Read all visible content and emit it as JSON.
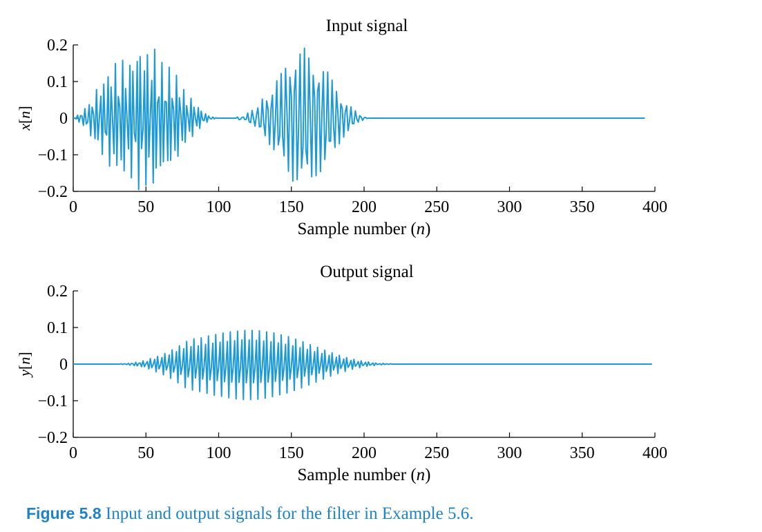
{
  "colors": {
    "line": "#1d9ad6",
    "axis": "#000000",
    "caption": "#1e83c5"
  },
  "caption": {
    "label": "Figure 5.8",
    "text": "Input and output signals for the filter in Example 5.6."
  },
  "chart_data": [
    {
      "type": "line",
      "title": "Input signal",
      "xlabel": "Sample number (n)",
      "ylabel": "x[n]",
      "xlim": [
        0,
        400
      ],
      "ylim": [
        -0.2,
        0.2
      ],
      "xticks": [
        0,
        50,
        100,
        150,
        200,
        250,
        300,
        350,
        400
      ],
      "yticks": [
        0.2,
        0.1,
        0,
        -0.1,
        -0.2
      ],
      "ytick_labels": [
        "0.2",
        "0.1",
        "0",
        "−0.1",
        "−0.2"
      ],
      "grid": false,
      "series": [
        {
          "values": [
            0.0,
            0.0,
            -0.002,
            0.008,
            -0.011,
            0.007,
            0.006,
            -0.02,
            0.026,
            -0.016,
            -0.01,
            0.037,
            -0.048,
            0.03,
            0.011,
            -0.056,
            0.078,
            -0.059,
            0.003,
            0.06,
            -0.099,
            0.093,
            -0.038,
            -0.046,
            0.113,
            -0.131,
            0.085,
            0.0,
            -0.097,
            0.149,
            -0.129,
            0.059,
            0.031,
            -0.114,
            0.158,
            -0.144,
            0.081,
            0.0,
            -0.084,
            0.144,
            -0.163,
            0.128,
            -0.042,
            -0.064,
            0.155,
            -0.195,
            0.168,
            -0.083,
            -0.029,
            0.129,
            -0.183,
            0.173,
            -0.106,
            0.004,
            0.103,
            -0.177,
            0.188,
            -0.136,
            0.042,
            0.058,
            -0.13,
            0.152,
            -0.119,
            0.046,
            0.044,
            -0.116,
            0.139,
            -0.115,
            0.054,
            0.023,
            -0.088,
            0.117,
            -0.104,
            0.056,
            0.011,
            -0.061,
            0.078,
            -0.066,
            0.034,
            0.004,
            -0.036,
            0.054,
            -0.05,
            0.03,
            0.001,
            -0.021,
            0.029,
            -0.028,
            0.019,
            -0.005,
            -0.007,
            0.012,
            -0.011,
            0.006,
            -0.001,
            -0.002,
            0.003,
            -0.002,
            0.001,
            0.0,
            0.0,
            0.0,
            0.0,
            0.0,
            0.0,
            0.0,
            0.0,
            0.0,
            0.0,
            0.0,
            0.0,
            0.0,
            0.0,
            0.003,
            -0.004,
            -0.003,
            0.002,
            0.003,
            -0.004,
            -0.003,
            0.014,
            -0.01,
            -0.012,
            0.021,
            -0.001,
            -0.022,
            0.008,
            0.028,
            -0.024,
            -0.023,
            0.052,
            -0.012,
            -0.048,
            0.047,
            0.023,
            -0.072,
            0.025,
            0.063,
            -0.086,
            -0.008,
            0.102,
            -0.073,
            -0.049,
            0.122,
            -0.05,
            -0.103,
            0.136,
            0.015,
            -0.145,
            0.112,
            0.06,
            -0.172,
            0.073,
            0.131,
            -0.168,
            -0.02,
            0.175,
            -0.136,
            -0.079,
            0.191,
            -0.086,
            -0.125,
            0.164,
            0.005,
            -0.16,
            0.117,
            0.055,
            -0.157,
            0.073,
            0.096,
            -0.146,
            0.011,
            0.127,
            -0.113,
            -0.037,
            0.126,
            -0.063,
            -0.063,
            0.104,
            -0.022,
            -0.08,
            0.073,
            0.013,
            -0.07,
            0.039,
            0.027,
            -0.052,
            0.015,
            0.034,
            -0.034,
            -0.008,
            0.031,
            -0.015,
            -0.015,
            0.02,
            -0.002,
            -0.011,
            0.007,
            0.003,
            -0.006,
            0.001,
            0.002,
            -0.001,
            0.0,
            0.0,
            0.0,
            0.0,
            0.0,
            0.0,
            0.0,
            0.0,
            0.0,
            0.0,
            0.0,
            0.0,
            0.0,
            0.0,
            0.0,
            0.0,
            0.0,
            0.0,
            0.0,
            0.0,
            0.0,
            0.0,
            0.0,
            0.0,
            0.0,
            0.0,
            0.0,
            0.0,
            0.0,
            0.0,
            0.0,
            0.0,
            0.0,
            0.0,
            0.0,
            0.0,
            0.0,
            0.0,
            0.0,
            0.0,
            0.0,
            0.0,
            0.0,
            0.0,
            0.0,
            0.0,
            0.0,
            0.0,
            0.0,
            0.0,
            0.0,
            0.0,
            0.0,
            0.0,
            0.0,
            0.0,
            0.0,
            0.0,
            0.0,
            0.0,
            0.0,
            0.0,
            0.0,
            0.0,
            0.0,
            0.0,
            0.0,
            0.0,
            0.0,
            0.0,
            0.0,
            0.0,
            0.0,
            0.0,
            0.0,
            0.0,
            0.0,
            0.0,
            0.0,
            0.0,
            0.0,
            0.0,
            0.0,
            0.0,
            0.0,
            0.0,
            0.0,
            0.0,
            0.0,
            0.0,
            0.0,
            0.0,
            0.0,
            0.0,
            0.0,
            0.0,
            0.0,
            0.0,
            0.0,
            0.0,
            0.0,
            0.0,
            0.0,
            0.0,
            0.0,
            0.0,
            0.0,
            0.0,
            0.0,
            0.0,
            0.0,
            0.0,
            0.0,
            0.0,
            0.0,
            0.0,
            0.0,
            0.0,
            0.0,
            0.0,
            0.0,
            0.0,
            0.0,
            0.0,
            0.0,
            0.0,
            0.0,
            0.0,
            0.0,
            0.0,
            0.0,
            0.0,
            0.0,
            0.0,
            0.0,
            0.0,
            0.0,
            0.0,
            0.0,
            0.0,
            0.0,
            0.0,
            0.0,
            0.0,
            0.0,
            0.0,
            0.0,
            0.0,
            0.0,
            0.0,
            0.0,
            0.0,
            0.0,
            0.0,
            0.0,
            0.0,
            0.0,
            0.0,
            0.0,
            0.0,
            0.0,
            0.0,
            0.0,
            0.0,
            0.0,
            0.0,
            0.0,
            0.0,
            0.0,
            0.0,
            0.0,
            0.0,
            0.0,
            0.0,
            0.0,
            0.0,
            0.0,
            0.0,
            0.0,
            0.0,
            0.0,
            0.0,
            0.0,
            0.0,
            0.0,
            0.0,
            0.0,
            0.0,
            0.0,
            0.0,
            0.0
          ]
        }
      ]
    },
    {
      "type": "line",
      "title": "Output signal",
      "xlabel": "Sample number (n)",
      "ylabel": "y[n]",
      "xlim": [
        0,
        400
      ],
      "ylim": [
        -0.2,
        0.2
      ],
      "xticks": [
        0,
        50,
        100,
        150,
        200,
        250,
        300,
        350,
        400
      ],
      "yticks": [
        0.2,
        0.1,
        0,
        -0.1,
        -0.2
      ],
      "ytick_labels": [
        "0.2",
        "0.1",
        "0",
        "−0.1",
        "−0.2"
      ],
      "grid": false,
      "series": [
        {
          "values": [
            0.0,
            0.0,
            0.0,
            0.0,
            0.0,
            0.0,
            0.0,
            0.0,
            0.0,
            0.0,
            0.0,
            0.0,
            0.0,
            0.0,
            0.0,
            0.0,
            0.0,
            0.0,
            0.0,
            0.0,
            0.0,
            0.0,
            0.0,
            0.0,
            0.0,
            0.0,
            0.0,
            0.0,
            0.0,
            0.0,
            0.0,
            0.0,
            0.0,
            0.001,
            -0.001,
            0.001,
            -0.0,
            -0.001,
            0.002,
            -0.003,
            0.002,
            0.001,
            -0.004,
            0.005,
            -0.005,
            0.002,
            0.003,
            -0.007,
            0.009,
            -0.007,
            0.001,
            0.007,
            -0.013,
            0.015,
            -0.01,
            -0.001,
            0.013,
            -0.021,
            0.021,
            -0.013,
            -0.002,
            0.018,
            -0.029,
            0.029,
            -0.016,
            -0.004,
            0.025,
            -0.039,
            0.039,
            -0.022,
            -0.005,
            0.034,
            -0.051,
            0.05,
            -0.028,
            -0.006,
            0.042,
            -0.064,
            0.062,
            -0.035,
            -0.007,
            0.048,
            -0.071,
            0.069,
            -0.038,
            -0.007,
            0.05,
            -0.075,
            0.072,
            -0.041,
            -0.007,
            0.054,
            -0.08,
            0.077,
            -0.043,
            -0.008,
            0.057,
            -0.085,
            0.081,
            -0.045,
            -0.008,
            0.06,
            -0.088,
            0.085,
            -0.048,
            -0.008,
            0.062,
            -0.092,
            0.088,
            -0.049,
            -0.008,
            0.064,
            -0.095,
            0.09,
            -0.05,
            -0.009,
            0.066,
            -0.097,
            0.092,
            -0.051,
            -0.009,
            0.066,
            -0.097,
            0.092,
            -0.051,
            -0.009,
            0.065,
            -0.096,
            0.091,
            -0.05,
            -0.009,
            0.063,
            -0.093,
            0.088,
            -0.049,
            -0.009,
            0.061,
            -0.089,
            0.085,
            -0.047,
            -0.008,
            0.058,
            -0.084,
            0.08,
            -0.044,
            -0.008,
            0.054,
            -0.079,
            0.075,
            -0.041,
            -0.007,
            0.05,
            -0.072,
            0.068,
            -0.037,
            -0.007,
            0.045,
            -0.065,
            0.061,
            -0.033,
            -0.006,
            0.04,
            -0.057,
            0.053,
            -0.029,
            -0.005,
            0.034,
            -0.049,
            0.046,
            -0.025,
            -0.004,
            0.029,
            -0.041,
            0.038,
            -0.02,
            -0.004,
            0.024,
            -0.033,
            0.031,
            -0.016,
            -0.003,
            0.019,
            -0.026,
            0.024,
            -0.012,
            -0.002,
            0.014,
            -0.02,
            0.018,
            -0.009,
            -0.002,
            0.01,
            -0.014,
            0.013,
            -0.006,
            -0.001,
            0.007,
            -0.01,
            0.009,
            -0.004,
            -0.001,
            0.005,
            -0.006,
            0.006,
            -0.003,
            -0.001,
            0.003,
            -0.004,
            0.003,
            -0.001,
            -0.0,
            0.001,
            -0.002,
            0.002,
            -0.001,
            -0.0,
            0.001,
            -0.001,
            0.001,
            -0.0,
            -0.0,
            0.0,
            -0.0,
            0.0,
            0.0,
            0.0,
            0.0,
            0.0,
            0.0,
            0.0,
            0.0,
            0.0,
            0.0,
            0.0,
            0.0,
            0.0,
            0.0,
            0.0,
            0.0,
            0.0,
            0.0,
            0.0,
            0.0,
            0.0,
            0.0,
            0.0,
            0.0,
            0.0,
            0.0,
            0.0,
            0.0,
            0.0,
            0.0,
            0.0,
            0.0,
            0.0,
            0.0,
            0.0,
            0.0,
            0.0,
            0.0,
            0.0,
            0.0,
            0.0,
            0.0,
            0.0,
            0.0,
            0.0,
            0.0,
            0.0,
            0.0,
            0.0,
            0.0,
            0.0,
            0.0,
            0.0,
            0.0,
            0.0,
            0.0,
            0.0,
            0.0,
            0.0,
            0.0,
            0.0,
            0.0,
            0.0,
            0.0,
            0.0,
            0.0,
            0.0,
            0.0,
            0.0,
            0.0,
            0.0,
            0.0,
            0.0,
            0.0,
            0.0,
            0.0,
            0.0,
            0.0,
            0.0,
            0.0,
            0.0,
            0.0,
            0.0,
            0.0,
            0.0,
            0.0,
            0.0,
            0.0,
            0.0,
            0.0,
            0.0,
            0.0,
            0.0,
            0.0,
            0.0,
            0.0,
            0.0,
            0.0,
            0.0,
            0.0,
            0.0,
            0.0,
            0.0,
            0.0,
            0.0,
            0.0,
            0.0,
            0.0,
            0.0,
            0.0,
            0.0,
            0.0,
            0.0,
            0.0,
            0.0,
            0.0,
            0.0,
            0.0,
            0.0,
            0.0,
            0.0,
            0.0,
            0.0,
            0.0,
            0.0,
            0.0,
            0.0,
            0.0,
            0.0,
            0.0,
            0.0,
            0.0,
            0.0,
            0.0,
            0.0,
            0.0,
            0.0,
            0.0,
            0.0,
            0.0,
            0.0,
            0.0,
            0.0,
            0.0,
            0.0,
            0.0,
            0.0,
            0.0,
            0.0,
            0.0,
            0.0,
            0.0,
            0.0,
            0.0,
            0.0,
            0.0,
            0.0,
            0.0,
            0.0,
            0.0,
            0.0,
            0.0,
            0.0,
            0.0,
            0.0,
            0.0,
            0.0,
            0.0,
            0.0,
            0.0,
            0.0,
            0.0,
            0.0,
            0.0,
            0.0,
            0.0
          ]
        }
      ]
    }
  ]
}
